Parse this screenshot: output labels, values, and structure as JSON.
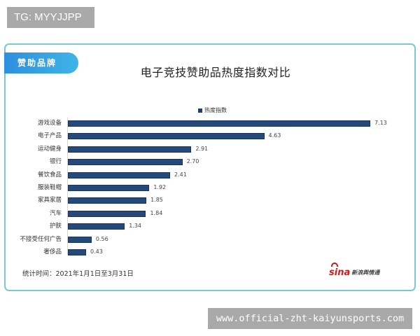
{
  "watermark_top": "TG: MYYJJPP",
  "watermark_bottom": "www.official-zht-kaiyunsports.com",
  "card": {
    "badge": "赞助品牌",
    "title": "电子竞技赞助品热度指数对比",
    "footnote": "统计时间：2021年1月1日至3月31日",
    "source_logo": {
      "word": "sina",
      "text": "新浪舆情通"
    }
  },
  "colors": {
    "bar": "#24497a",
    "card_border": "#7ec6d3",
    "badge_gradient_start": "#2e8fe0",
    "badge_gradient_end": "#3fb4e6"
  },
  "chart_data": {
    "type": "bar",
    "orientation": "horizontal",
    "title": "电子竞技赞助品热度指数对比",
    "xlabel": "",
    "ylabel": "",
    "legend": [
      "热度指数"
    ],
    "legend_position": "top",
    "grid": false,
    "xlim": [
      0,
      7.5
    ],
    "categories": [
      "游戏设备",
      "电子产品",
      "运动健身",
      "银行",
      "餐饮食品",
      "服装鞋帽",
      "家具家居",
      "汽车",
      "护肤",
      "不接受任何广告",
      "奢侈品"
    ],
    "series": [
      {
        "name": "热度指数",
        "values": [
          7.13,
          4.63,
          2.91,
          2.7,
          2.41,
          1.92,
          1.85,
          1.84,
          1.34,
          0.56,
          0.43
        ]
      }
    ],
    "value_labels": [
      "7.13",
      "4.63",
      "2.91",
      "2.70",
      "2.41",
      "1.92",
      "1.85",
      "1.84",
      "1.34",
      "0.56",
      "0.43"
    ],
    "annotation": "统计时间：2021年1月1日至3月31日"
  }
}
